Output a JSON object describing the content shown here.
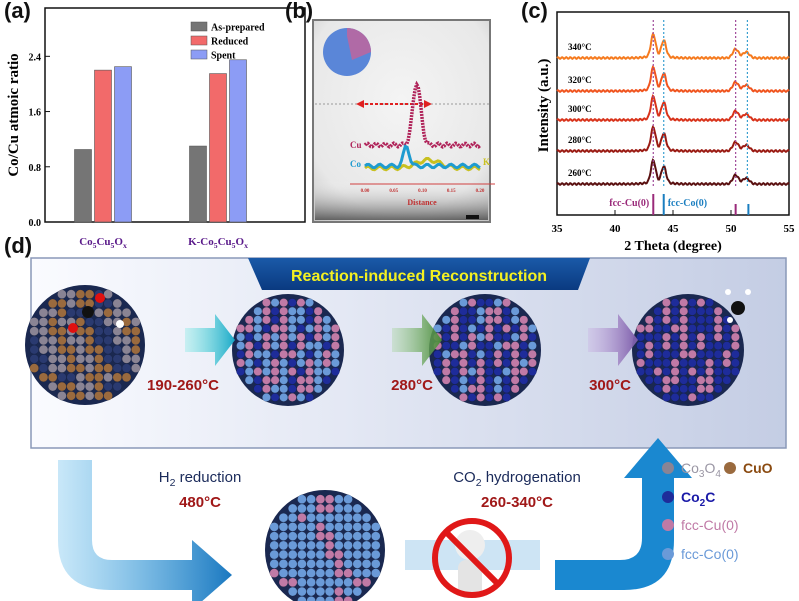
{
  "panels": {
    "a": "(a)",
    "b": "(b)",
    "c": "(c)",
    "d": "(d)"
  },
  "chart_data": [
    {
      "type": "bar",
      "panel": "a",
      "categories": [
        "Co5Cu5Ox",
        "K-Co5Cu5Ox"
      ],
      "category_parts": [
        [
          {
            "t": "Co"
          },
          {
            "s": "5"
          },
          {
            "t": "Cu"
          },
          {
            "s": "5"
          },
          {
            "t": "O"
          },
          {
            "s": "x"
          }
        ],
        [
          {
            "t": "K-Co"
          },
          {
            "s": "5"
          },
          {
            "t": "Cu"
          },
          {
            "s": "5"
          },
          {
            "t": "O"
          },
          {
            "s": "x"
          }
        ]
      ],
      "series": [
        {
          "name": "As-prepared",
          "values": [
            1.05,
            1.1
          ],
          "color": "#757575"
        },
        {
          "name": "Reduced",
          "values": [
            2.2,
            2.15
          ],
          "color": "#f26a6a"
        },
        {
          "name": "Spent",
          "values": [
            2.25,
            2.35
          ],
          "color": "#8c9cf5"
        }
      ],
      "ylabel": "Co/Cu atmoic ratio",
      "yticks": [
        "0.0",
        "0.8",
        "1.6",
        "2.4"
      ],
      "ylim": [
        0,
        3.1
      ],
      "legend": "top-right"
    },
    {
      "type": "line",
      "panel": "b",
      "xlabel": "Distance",
      "xticks": [
        "0.00",
        "0.05",
        "0.10",
        "0.15",
        "0.20"
      ],
      "xlim": [
        0,
        0.2
      ],
      "series": [
        {
          "name": "Cu",
          "color": "#b0245a"
        },
        {
          "name": "Co",
          "color": "#1e9bd0"
        },
        {
          "name": "K",
          "color": "#c8c020"
        }
      ]
    },
    {
      "type": "line",
      "panel": "c",
      "xlabel": "2 Theta (degree)",
      "ylabel": "Intensity (a.u.)",
      "xticks": [
        "35",
        "40",
        "45",
        "50",
        "55"
      ],
      "xlim": [
        35,
        55
      ],
      "series": [
        {
          "name": "340°C",
          "color": "#f57a1e"
        },
        {
          "name": "320°C",
          "color": "#f0541e"
        },
        {
          "name": "300°C",
          "color": "#d8321a"
        },
        {
          "name": "280°C",
          "color": "#9a1a12"
        },
        {
          "name": "260°C",
          "color": "#5a1010"
        }
      ],
      "peaks_cu": [
        43.3,
        50.4
      ],
      "peaks_co": [
        44.2,
        51.5
      ],
      "references": [
        {
          "name": "fcc-Cu(0)",
          "color": "#9a2a7a",
          "positions": [
            43.3,
            50.4
          ]
        },
        {
          "name": "fcc-Co(0)",
          "color": "#1a7ec0",
          "positions": [
            44.2,
            51.5
          ]
        }
      ]
    }
  ],
  "scheme": {
    "banner": "Reaction-induced Reconstruction",
    "step_temps": [
      "190-260°C",
      "280°C",
      "300°C"
    ],
    "h2_reduction": {
      "pre": "H",
      "sub": "2",
      "post": " reduction",
      "temp": "480°C"
    },
    "co2_hydrogenation": {
      "pre": "CO",
      "sub": "2",
      "post": " hydrogenation",
      "temp": "260-340°C"
    },
    "legend": [
      {
        "pre": "Co",
        "sub1": "3",
        "mid": "O",
        "sub2": "4",
        "color": "#8a8494",
        "text_color": "#9a96a4"
      },
      {
        "pre": "CuO",
        "color": "#9a6a3e",
        "text_color": "#8a4a10"
      },
      {
        "pre": "Co",
        "sub1": "2",
        "mid": "C",
        "color": "#1e2c9a",
        "text_color": "#1a1aa8"
      },
      {
        "pre": "fcc-Cu(0)",
        "color": "#c07aa6",
        "text_color": "#c07aa6"
      },
      {
        "pre": "fcc-Co(0)",
        "color": "#6a9ad8",
        "text_color": "#6a9ad8"
      }
    ]
  }
}
